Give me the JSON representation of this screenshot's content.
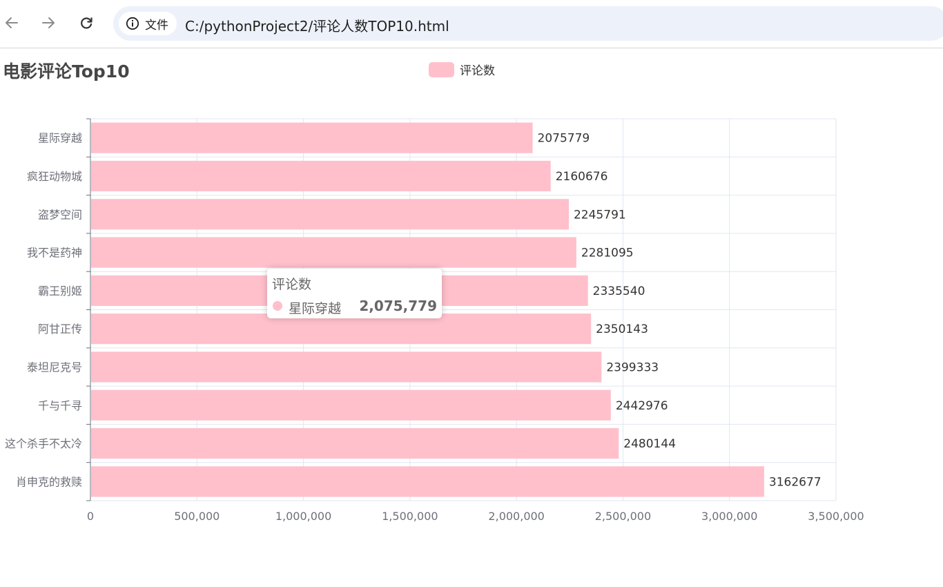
{
  "browser": {
    "site_label": "文件",
    "url": "C:/pythonProject2/评论人数TOP10.html",
    "icons": [
      "back-arrow-icon",
      "forward-arrow-icon",
      "reload-icon",
      "info-icon"
    ]
  },
  "tooltip": {
    "title": "评论数",
    "item_name": "星际穿越",
    "item_value": "2,075,779"
  },
  "chart_data": {
    "type": "bar",
    "orientation": "horizontal",
    "title": "电影评论Top10",
    "categories": [
      "星际穿越",
      "疯狂动物城",
      "盗梦空间",
      "我不是药神",
      "霸王别姬",
      "阿甘正传",
      "泰坦尼克号",
      "千与千寻",
      "这个杀手不太冷",
      "肖申克的救赎"
    ],
    "series": [
      {
        "name": "评论数",
        "color": "#ffc0cb",
        "values": [
          2075779,
          2160676,
          2245791,
          2281095,
          2335540,
          2350143,
          2399333,
          2442976,
          2480144,
          3162677
        ]
      }
    ],
    "xlim": [
      0,
      3500000
    ],
    "x_ticks": [
      0,
      500000,
      1000000,
      1500000,
      2000000,
      2500000,
      3000000,
      3500000
    ],
    "x_tick_labels": [
      "0",
      "500,000",
      "1,000,000",
      "1,500,000",
      "2,000,000",
      "2,500,000",
      "3,000,000",
      "3,500,000"
    ],
    "grid": true,
    "legend_position": "top-center",
    "data_labels": true
  }
}
